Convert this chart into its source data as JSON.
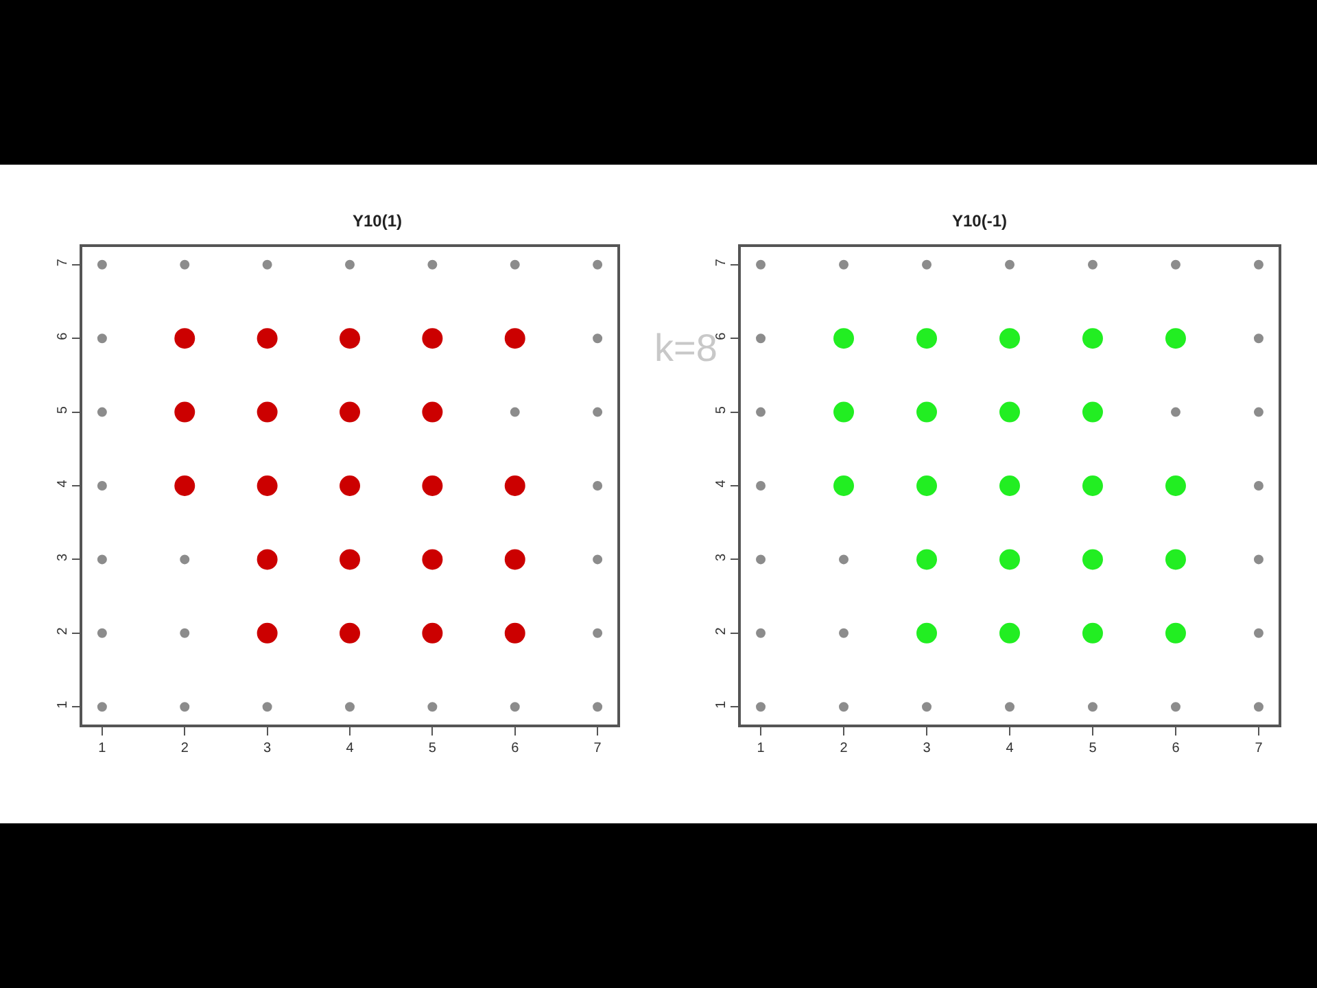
{
  "chart_data": [
    {
      "type": "scatter",
      "title": "Y10(1)",
      "xlim": [
        0.76,
        7.24
      ],
      "ylim": [
        0.76,
        7.24
      ],
      "xticks": [
        1,
        2,
        3,
        4,
        5,
        6,
        7
      ],
      "yticks": [
        1,
        2,
        3,
        4,
        5,
        6,
        7
      ],
      "marker": "circle",
      "annotations": [
        "k=8"
      ],
      "series": [
        {
          "color": "#8c8c8c",
          "x": [
            1,
            2,
            3,
            4,
            5,
            6,
            7,
            1,
            7,
            1,
            6,
            7,
            1,
            7,
            1,
            2,
            7,
            1,
            2,
            7,
            1,
            2,
            3,
            4,
            5,
            6,
            7
          ],
          "values": [
            7,
            7,
            7,
            7,
            7,
            7,
            7,
            6,
            6,
            5,
            5,
            5,
            4,
            4,
            3,
            3,
            3,
            2,
            2,
            2,
            1,
            1,
            1,
            1,
            1,
            1,
            1
          ]
        },
        {
          "color": "#cc0000",
          "x": [
            2,
            3,
            4,
            5,
            6,
            2,
            3,
            4,
            5,
            2,
            3,
            4,
            5,
            6,
            3,
            4,
            5,
            6,
            3,
            4,
            5,
            6
          ],
          "values": [
            6,
            6,
            6,
            6,
            6,
            5,
            5,
            5,
            5,
            4,
            4,
            4,
            4,
            4,
            3,
            3,
            3,
            3,
            2,
            2,
            2,
            2
          ]
        }
      ]
    },
    {
      "type": "scatter",
      "title": "Y10(-1)",
      "xlim": [
        0.76,
        7.24
      ],
      "ylim": [
        0.76,
        7.24
      ],
      "xticks": [
        1,
        2,
        3,
        4,
        5,
        6,
        7
      ],
      "yticks": [
        1,
        2,
        3,
        4,
        5,
        6,
        7
      ],
      "marker": "circle",
      "series": [
        {
          "color": "#8c8c8c",
          "x": [
            1,
            2,
            3,
            4,
            5,
            6,
            7,
            1,
            7,
            1,
            6,
            7,
            1,
            7,
            1,
            2,
            7,
            1,
            2,
            7,
            1,
            2,
            3,
            4,
            5,
            6,
            7
          ],
          "values": [
            7,
            7,
            7,
            7,
            7,
            7,
            7,
            6,
            6,
            5,
            5,
            5,
            4,
            4,
            3,
            3,
            3,
            2,
            2,
            2,
            1,
            1,
            1,
            1,
            1,
            1,
            1
          ]
        },
        {
          "color": "#22ee22",
          "x": [
            2,
            3,
            4,
            5,
            6,
            2,
            3,
            4,
            5,
            2,
            3,
            4,
            5,
            6,
            3,
            4,
            5,
            6,
            3,
            4,
            5,
            6
          ],
          "values": [
            6,
            6,
            6,
            6,
            6,
            5,
            5,
            5,
            5,
            4,
            4,
            4,
            4,
            4,
            3,
            3,
            3,
            3,
            2,
            2,
            2,
            2
          ]
        }
      ]
    }
  ]
}
